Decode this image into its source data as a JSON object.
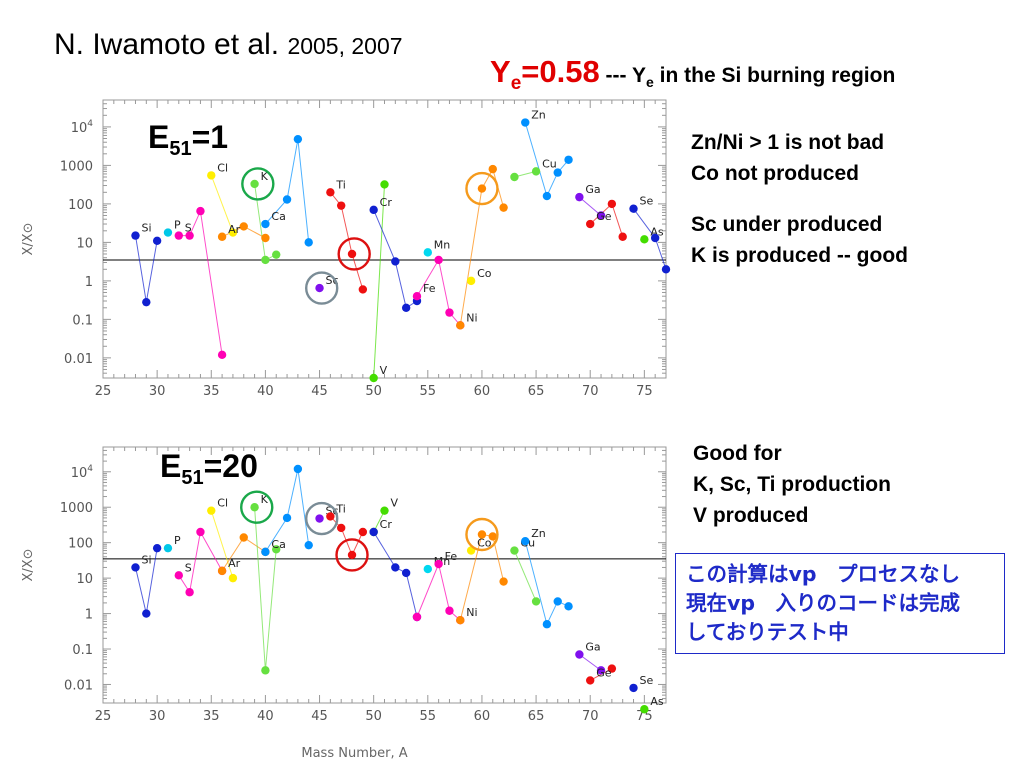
{
  "header": {
    "author": "N. Iwamoto et al.",
    "years": "2005, 2007",
    "ye_symbol": "Y",
    "ye_sub": "e",
    "ye_value": "=0.58",
    "ye_desc_pre": " --- Y",
    "ye_desc_sub": "e",
    "ye_desc_post": " in the Si burning region"
  },
  "notes_top": {
    "line1": "Zn/Ni > 1 is not bad",
    "line2": "Co not produced",
    "line3": "Sc under produced",
    "line4": "K is produced -- good"
  },
  "notes_bottom": {
    "line1": "Good for",
    "line2": "K, Sc, Ti production",
    "line3": "V produced"
  },
  "jp_note": {
    "line1": "この計算はvp　プロセスなし",
    "line2": "現在vp　入りのコードは完成",
    "line3": "しておりテスト中"
  },
  "colors": {
    "Si": "#1020d0",
    "P": "#00c8e8",
    "S": "#ff00b4",
    "Cl": "#ffee00",
    "Ar": "#ff8800",
    "K": "#66e040",
    "Ca": "#0090ff",
    "Sc": "#8010ee",
    "Ti": "#ee1010",
    "V": "#44dd00",
    "Cr": "#1020d0",
    "Mn": "#00d8f0",
    "Fe": "#ff00b4",
    "Co": "#ffee00",
    "Ni": "#ff8800",
    "Cu": "#66e040",
    "Zn": "#0090ff",
    "Ga": "#8010ee",
    "Ge": "#ee1010",
    "As": "#44dd00",
    "Se": "#1020d0",
    "circle_green": "#1aa84a",
    "circle_gray": "#7a8c96",
    "circle_red": "#dd1010",
    "circle_orange": "#f59a1c",
    "ref_line": "#000000"
  },
  "chart_data": [
    {
      "type": "scatter",
      "label_pre": "E",
      "label_sub": "51",
      "label_post": "=1",
      "xlabel": "",
      "ylabel": "X/X⊙",
      "xlim": [
        25,
        77
      ],
      "ylim": [
        0.003,
        50000
      ],
      "yscale": "log",
      "x_ticks": [
        "25",
        "30",
        "35",
        "40",
        "45",
        "50",
        "55",
        "60",
        "65",
        "70",
        "75"
      ],
      "y_ticks": [
        {
          "value": 10000,
          "base": "10",
          "exp": "4"
        },
        {
          "value": 1000,
          "base": "1000"
        },
        {
          "value": 100,
          "base": "100"
        },
        {
          "value": 10,
          "base": "10"
        },
        {
          "value": 1,
          "base": "1"
        },
        {
          "value": 0.1,
          "base": "0.1"
        },
        {
          "value": 0.01,
          "base": "0.01"
        }
      ],
      "reference_line": 3.5,
      "series": [
        {
          "name": "Si",
          "points": [
            [
              28,
              15
            ],
            [
              29,
              0.28
            ],
            [
              30,
              11
            ]
          ]
        },
        {
          "name": "P",
          "points": [
            [
              31,
              18
            ]
          ]
        },
        {
          "name": "S",
          "points": [
            [
              32,
              15
            ],
            [
              33,
              15
            ],
            [
              34,
              65
            ],
            [
              36,
              0.012
            ]
          ]
        },
        {
          "name": "Cl",
          "points": [
            [
              35,
              550
            ],
            [
              37,
              18
            ]
          ]
        },
        {
          "name": "Ar",
          "points": [
            [
              36,
              14
            ],
            [
              38,
              26
            ],
            [
              40,
              13
            ]
          ]
        },
        {
          "name": "K",
          "points": [
            [
              39,
              330
            ],
            [
              40,
              3.5
            ],
            [
              41,
              4.8
            ]
          ]
        },
        {
          "name": "Ca",
          "points": [
            [
              40,
              30
            ],
            [
              42,
              130
            ],
            [
              43,
              4800
            ],
            [
              44,
              10
            ]
          ]
        },
        {
          "name": "Sc",
          "points": [
            [
              45,
              0.65
            ]
          ]
        },
        {
          "name": "Ti",
          "points": [
            [
              46,
              200
            ],
            [
              47,
              90
            ],
            [
              48,
              5
            ],
            [
              49,
              0.6
            ]
          ]
        },
        {
          "name": "V",
          "points": [
            [
              50,
              0.003
            ],
            [
              51,
              320
            ]
          ]
        },
        {
          "name": "Cr",
          "points": [
            [
              50,
              70
            ],
            [
              52,
              3.2
            ],
            [
              53,
              0.2
            ],
            [
              54,
              0.3
            ]
          ]
        },
        {
          "name": "Mn",
          "points": [
            [
              55,
              5.5
            ]
          ]
        },
        {
          "name": "Fe",
          "points": [
            [
              54,
              0.4
            ],
            [
              56,
              3.5
            ],
            [
              57,
              0.15
            ],
            [
              58,
              0.07
            ]
          ]
        },
        {
          "name": "Co",
          "points": [
            [
              59,
              1.0
            ]
          ]
        },
        {
          "name": "Ni",
          "points": [
            [
              58,
              0.07
            ],
            [
              60,
              250
            ],
            [
              61,
              800
            ],
            [
              62,
              80
            ]
          ]
        },
        {
          "name": "Cu",
          "points": [
            [
              63,
              500
            ],
            [
              65,
              700
            ]
          ]
        },
        {
          "name": "Zn",
          "points": [
            [
              64,
              13000
            ],
            [
              66,
              160
            ],
            [
              67,
              650
            ],
            [
              68,
              1400
            ]
          ]
        },
        {
          "name": "Ga",
          "points": [
            [
              69,
              150
            ],
            [
              71,
              50
            ]
          ]
        },
        {
          "name": "Ge",
          "points": [
            [
              70,
              30
            ],
            [
              72,
              100
            ],
            [
              73,
              14
            ]
          ]
        },
        {
          "name": "As",
          "points": [
            [
              75,
              12
            ]
          ]
        },
        {
          "name": "Se",
          "points": [
            [
              74,
              75
            ],
            [
              76,
              13
            ],
            [
              77,
              2
            ]
          ]
        }
      ],
      "label_positions": {
        "Si": 28,
        "P": 31,
        "S": 32,
        "Cl": 35,
        "Ar": 36,
        "K": 39,
        "Ca": 40,
        "Sc": 45,
        "Ti": 46,
        "V": 50,
        "Cr": 50,
        "Mn": 55,
        "Fe": 54,
        "Co": 59,
        "Ni": 58,
        "Cu": 65,
        "Zn": 64,
        "Ga": 69,
        "Ge": 70,
        "As": 75,
        "Se": 74
      },
      "circles": [
        {
          "x": 39.3,
          "y": 330,
          "color": "circle_green"
        },
        {
          "x": 45.2,
          "y": 0.65,
          "color": "circle_gray"
        },
        {
          "x": 48.2,
          "y": 5,
          "color": "circle_red"
        },
        {
          "x": 60.0,
          "y": 250,
          "color": "circle_orange"
        }
      ]
    },
    {
      "type": "scatter",
      "label_pre": "E",
      "label_sub": "51",
      "label_post": "=20",
      "xlabel": "Mass Number, A",
      "ylabel": "X/X⊙",
      "xlim": [
        25,
        77
      ],
      "ylim": [
        0.003,
        50000
      ],
      "yscale": "log",
      "x_ticks": [
        "25",
        "30",
        "35",
        "40",
        "45",
        "50",
        "55",
        "60",
        "65",
        "70",
        "75"
      ],
      "y_ticks": [
        {
          "value": 10000,
          "base": "10",
          "exp": "4"
        },
        {
          "value": 1000,
          "base": "1000"
        },
        {
          "value": 100,
          "base": "100"
        },
        {
          "value": 10,
          "base": "10"
        },
        {
          "value": 1,
          "base": "1"
        },
        {
          "value": 0.1,
          "base": "0.1"
        },
        {
          "value": 0.01,
          "base": "0.01"
        }
      ],
      "reference_line": 35,
      "series": [
        {
          "name": "Si",
          "points": [
            [
              28,
              20
            ],
            [
              29,
              1.0
            ],
            [
              30,
              70
            ]
          ]
        },
        {
          "name": "P",
          "points": [
            [
              31,
              70
            ]
          ]
        },
        {
          "name": "S",
          "points": [
            [
              32,
              12
            ],
            [
              33,
              4
            ],
            [
              34,
              200
            ],
            [
              36,
              16
            ]
          ]
        },
        {
          "name": "Cl",
          "points": [
            [
              35,
              800
            ],
            [
              37,
              10
            ]
          ]
        },
        {
          "name": "Ar",
          "points": [
            [
              36,
              16
            ],
            [
              38,
              140
            ],
            [
              40,
              55
            ]
          ]
        },
        {
          "name": "K",
          "points": [
            [
              39,
              1000
            ],
            [
              40,
              0.025
            ],
            [
              41,
              65
            ]
          ]
        },
        {
          "name": "Ca",
          "points": [
            [
              40,
              55
            ],
            [
              42,
              500
            ],
            [
              43,
              12000
            ],
            [
              44,
              85
            ]
          ]
        },
        {
          "name": "Sc",
          "points": [
            [
              45,
              480
            ]
          ]
        },
        {
          "name": "Ti",
          "points": [
            [
              46,
              550
            ],
            [
              47,
              260
            ],
            [
              48,
              45
            ],
            [
              49,
              200
            ]
          ]
        },
        {
          "name": "V",
          "points": [
            [
              50,
              200
            ],
            [
              51,
              800
            ]
          ]
        },
        {
          "name": "Cr",
          "points": [
            [
              50,
              200
            ],
            [
              52,
              20
            ],
            [
              53,
              14
            ],
            [
              54,
              0.8
            ]
          ]
        },
        {
          "name": "Mn",
          "points": [
            [
              55,
              18
            ]
          ]
        },
        {
          "name": "Fe",
          "points": [
            [
              54,
              0.8
            ],
            [
              56,
              25
            ],
            [
              57,
              1.2
            ],
            [
              58,
              0.65
            ]
          ]
        },
        {
          "name": "Co",
          "points": [
            [
              59,
              60
            ]
          ]
        },
        {
          "name": "Ni",
          "points": [
            [
              58,
              0.65
            ],
            [
              60,
              170
            ],
            [
              61,
              150
            ],
            [
              62,
              8
            ]
          ]
        },
        {
          "name": "Cu",
          "points": [
            [
              63,
              60
            ],
            [
              65,
              2.2
            ]
          ]
        },
        {
          "name": "Zn",
          "points": [
            [
              64,
              110
            ],
            [
              66,
              0.5
            ],
            [
              67,
              2.2
            ],
            [
              68,
              1.6
            ]
          ]
        },
        {
          "name": "Ga",
          "points": [
            [
              69,
              0.07
            ],
            [
              71,
              0.025
            ]
          ]
        },
        {
          "name": "Ge",
          "points": [
            [
              70,
              0.013
            ],
            [
              72,
              0.028
            ]
          ]
        },
        {
          "name": "As",
          "points": [
            [
              75,
              0.002
            ]
          ]
        },
        {
          "name": "Se",
          "points": [
            [
              74,
              0.008
            ]
          ]
        }
      ],
      "label_positions": {
        "Si": 28,
        "P": 31,
        "S": 32,
        "Cl": 35,
        "Ar": 36,
        "K": 39,
        "Ca": 41,
        "Sc": 45,
        "Ti": 46,
        "V": 51,
        "Cr": 50,
        "Mn": 55,
        "Fe": 56,
        "Co": 59,
        "Ni": 58,
        "Cu": 63,
        "Zn": 64,
        "Ga": 69,
        "Ge": 70,
        "As": 75,
        "Se": 74
      },
      "circles": [
        {
          "x": 39.2,
          "y": 1000,
          "color": "circle_green"
        },
        {
          "x": 45.2,
          "y": 480,
          "color": "circle_gray"
        },
        {
          "x": 48.0,
          "y": 45,
          "color": "circle_red"
        },
        {
          "x": 60.0,
          "y": 170,
          "color": "circle_orange"
        }
      ]
    }
  ]
}
